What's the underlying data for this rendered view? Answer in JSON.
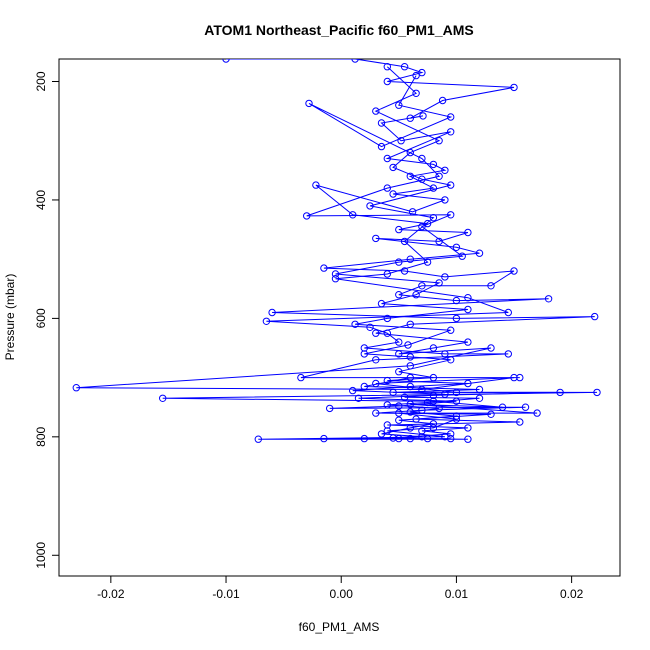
{
  "chart_data": {
    "type": "scatter",
    "title": "ATOM1 Northeast_Pacific f60_PM1_AMS",
    "xlabel": "f60_PM1_AMS",
    "ylabel": "Pressure (mbar)",
    "xlim": [
      -0.0245,
      0.0242
    ],
    "ylim": [
      1035,
      162
    ],
    "y_reversed": true,
    "xticks": [
      -0.02,
      -0.01,
      0.0,
      0.01,
      0.02
    ],
    "xtick_labels": [
      "-0.02",
      "-0.01",
      "0.00",
      "0.01",
      "0.02"
    ],
    "yticks": [
      200,
      400,
      600,
      800,
      1000
    ],
    "ytick_labels": [
      "200",
      "400",
      "600",
      "800",
      "1000"
    ],
    "grid": false,
    "legend": "none",
    "color": "#0000ff",
    "series": [
      {
        "style": "line+points",
        "points": [
          [
            -0.01,
            162
          ],
          [
            0.0012,
            162
          ],
          [
            0.0055,
            175
          ],
          [
            0.007,
            185
          ],
          [
            0.004,
            200
          ],
          [
            0.015,
            210
          ],
          [
            0.0088,
            232
          ],
          [
            0.006,
            262
          ],
          [
            0.0071,
            258
          ],
          [
            0.0035,
            270
          ],
          [
            0.0052,
            300
          ],
          [
            0.0095,
            285
          ],
          [
            0.004,
            330
          ],
          [
            0.008,
            340
          ],
          [
            0.009,
            350
          ],
          [
            0.006,
            360
          ],
          [
            0.008,
            380
          ],
          [
            0.0045,
            390
          ],
          [
            0.009,
            400
          ],
          [
            0.0062,
            420
          ],
          [
            -0.0022,
            375
          ],
          [
            0.001,
            425
          ],
          [
            0.0075,
            440
          ],
          [
            0.005,
            450
          ],
          [
            0.011,
            455
          ],
          [
            0.0085,
            470
          ],
          [
            0.003,
            465
          ],
          [
            0.01,
            480
          ],
          [
            0.012,
            490
          ],
          [
            0.006,
            500
          ],
          [
            -0.0015,
            515
          ],
          [
            0.0055,
            520
          ],
          [
            0.009,
            530
          ],
          [
            0.015,
            520
          ],
          [
            0.013,
            545
          ],
          [
            0.007,
            545
          ],
          [
            0.005,
            560
          ],
          [
            0.01,
            570
          ],
          [
            0.018,
            567
          ],
          [
            -0.006,
            590
          ],
          [
            0.01,
            600
          ],
          [
            0.022,
            597
          ],
          [
            0.006,
            610
          ],
          [
            0.003,
            625
          ],
          [
            0.011,
            640
          ],
          [
            0.008,
            650
          ],
          [
            0.005,
            660
          ],
          [
            0.013,
            650
          ],
          [
            0.006,
            680
          ],
          [
            -0.023,
            717
          ],
          [
            0.007,
            720
          ],
          [
            0.015,
            700
          ],
          [
            0.003,
            710
          ],
          [
            0.01,
            725
          ],
          [
            0.0222,
            725
          ],
          [
            -0.0155,
            735
          ],
          [
            0.008,
            740
          ],
          [
            0.014,
            750
          ],
          [
            0.006,
            745
          ],
          [
            0.017,
            760
          ],
          [
            0.005,
            760
          ],
          [
            0.01,
            770
          ],
          [
            0.008,
            785
          ],
          [
            0.004,
            790
          ],
          [
            0.009,
            800
          ],
          [
            -0.0072,
            804
          ],
          [
            0.011,
            804
          ],
          [
            0.006,
            803
          ],
          [
            0.002,
            803
          ]
        ]
      },
      {
        "style": "line+points",
        "points": [
          [
            0.004,
            175
          ],
          [
            0.0065,
            220
          ],
          [
            0.003,
            250
          ],
          [
            0.0085,
            300
          ],
          [
            0.006,
            320
          ],
          [
            0.0045,
            345
          ],
          [
            0.007,
            365
          ],
          [
            0.0095,
            375
          ],
          [
            0.0025,
            410
          ],
          [
            0.008,
            430
          ],
          [
            0.0055,
            470
          ],
          [
            0.0075,
            505
          ],
          [
            0.004,
            525
          ],
          [
            -0.0005,
            533
          ],
          [
            0.011,
            565
          ],
          [
            0.0145,
            590
          ],
          [
            -0.0065,
            605
          ],
          [
            0.0025,
            615
          ],
          [
            0.004,
            625
          ],
          [
            0.005,
            640
          ],
          [
            0.002,
            650
          ],
          [
            0.009,
            660
          ],
          [
            0.0145,
            660
          ],
          [
            0.003,
            670
          ],
          [
            -0.0035,
            700
          ],
          [
            0.0155,
            700
          ],
          [
            0.006,
            700
          ],
          [
            0.002,
            715
          ],
          [
            0.012,
            720
          ],
          [
            0.0045,
            725
          ],
          [
            0.019,
            725
          ],
          [
            0.008,
            730
          ],
          [
            0.0015,
            735
          ],
          [
            0.01,
            740
          ],
          [
            0.005,
            748
          ],
          [
            -0.001,
            752
          ],
          [
            0.016,
            750
          ],
          [
            0.007,
            755
          ],
          [
            0.003,
            760
          ],
          [
            0.013,
            762
          ],
          [
            0.0065,
            770
          ],
          [
            0.0155,
            775
          ],
          [
            0.004,
            780
          ],
          [
            0.011,
            785
          ],
          [
            0.007,
            790
          ],
          [
            0.0095,
            795
          ],
          [
            0.0045,
            802
          ],
          [
            -0.0015,
            803
          ],
          [
            0.0095,
            803
          ],
          [
            0.0075,
            803
          ]
        ]
      },
      {
        "style": "line+points",
        "points": [
          [
            0.0065,
            190
          ],
          [
            0.005,
            240
          ],
          [
            0.0095,
            260
          ],
          [
            0.0035,
            310
          ],
          [
            -0.0028,
            237
          ],
          [
            0.007,
            330
          ],
          [
            0.0085,
            360
          ],
          [
            0.004,
            380
          ],
          [
            -0.003,
            427
          ],
          [
            0.0095,
            425
          ],
          [
            0.007,
            445
          ],
          [
            0.0105,
            495
          ],
          [
            0.005,
            505
          ],
          [
            -0.0005,
            525
          ],
          [
            0.0085,
            540
          ],
          [
            0.0065,
            560
          ],
          [
            0.0035,
            575
          ],
          [
            0.011,
            585
          ],
          [
            0.004,
            600
          ],
          [
            0.0012,
            610
          ],
          [
            0.0095,
            620
          ],
          [
            0.0058,
            645
          ],
          [
            0.002,
            660
          ],
          [
            0.006,
            665
          ],
          [
            0.0095,
            670
          ],
          [
            0.005,
            690
          ],
          [
            0.008,
            700
          ],
          [
            0.004,
            705
          ],
          [
            0.011,
            710
          ],
          [
            0.006,
            715
          ],
          [
            0.001,
            722
          ],
          [
            0.009,
            728
          ],
          [
            0.0055,
            733
          ],
          [
            0.012,
            735
          ],
          [
            0.0075,
            742
          ],
          [
            0.004,
            746
          ],
          [
            0.0085,
            752
          ],
          [
            0.006,
            758
          ],
          [
            0.01,
            765
          ],
          [
            0.005,
            772
          ],
          [
            0.008,
            778
          ],
          [
            0.006,
            785
          ],
          [
            0.0035,
            795
          ],
          [
            0.007,
            800
          ],
          [
            0.005,
            803
          ]
        ]
      }
    ]
  }
}
